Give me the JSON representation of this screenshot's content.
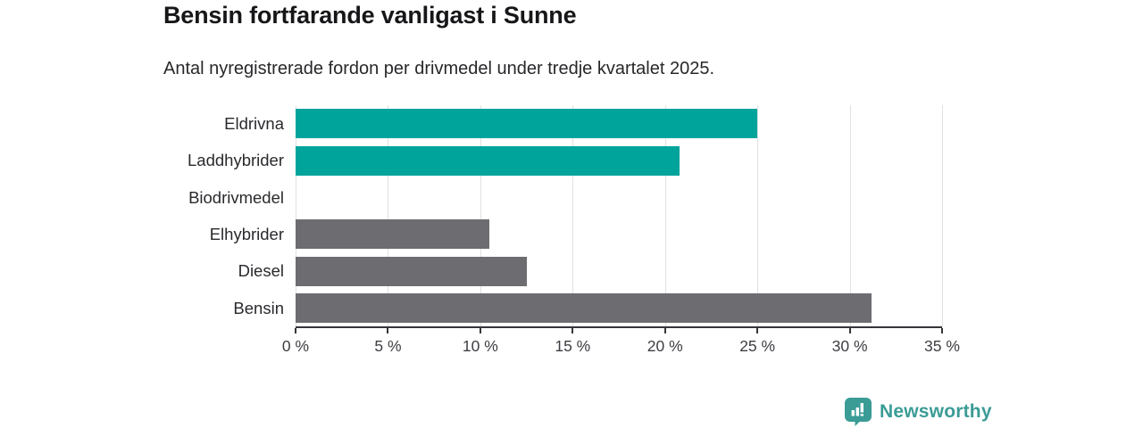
{
  "header": {
    "title": "Bensin fortfarande vanligast i Sunne",
    "subtitle": "Antal nyregistrerade fordon per drivmedel under tredje kvartalet 2025."
  },
  "chart_data": {
    "type": "bar",
    "orientation": "horizontal",
    "title": "Bensin fortfarande vanligast i Sunne",
    "subtitle": "Antal nyregistrerade fordon per drivmedel under tredje kvartalet 2025.",
    "categories": [
      "Eldrivna",
      "Laddhybrider",
      "Biodrivmedel",
      "Elhybrider",
      "Diesel",
      "Bensin"
    ],
    "values": [
      25.0,
      20.8,
      0,
      10.5,
      12.5,
      31.2
    ],
    "unit": "%",
    "bar_colors": [
      "#00a49b",
      "#00a49b",
      "#00a49b",
      "#6d6d71",
      "#6d6d71",
      "#6d6d71"
    ],
    "xlabel": "",
    "ylabel": "",
    "xlim": [
      0,
      35
    ],
    "x_ticks": [
      0,
      5,
      10,
      15,
      20,
      25,
      30,
      35
    ],
    "x_tick_labels": [
      "0 %",
      "5 %",
      "10 %",
      "15 %",
      "20 %",
      "25 %",
      "30 %",
      "35 %"
    ],
    "grid": "vertical",
    "legend": "none"
  },
  "colors": {
    "highlight_teal": "#00a49b",
    "neutral_gray": "#6d6d71",
    "gridline": "#e1e1e4",
    "axis": "#37353a",
    "brand_teal": "#3b9c96"
  },
  "branding": {
    "logo_label": "Newsworthy",
    "logo_icon": "newsworthy-bar-chart-pin-icon"
  }
}
